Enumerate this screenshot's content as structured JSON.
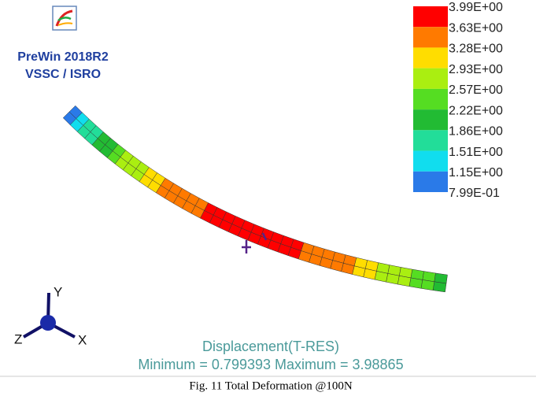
{
  "logo": {
    "product": "PreWin 2018R2",
    "org": "VSSC / ISRO"
  },
  "legend": {
    "labels": [
      "3.99E+00",
      "3.63E+00",
      "3.28E+00",
      "2.93E+00",
      "2.57E+00",
      "2.22E+00",
      "1.86E+00",
      "1.51E+00",
      "1.15E+00",
      "7.99E-01"
    ],
    "colors": [
      "#ff0000",
      "#ff7a00",
      "#ffdd00",
      "#aaee11",
      "#55dd22",
      "#22bb33",
      "#22dd99",
      "#11ddee",
      "#2a7ae8"
    ]
  },
  "triad": {
    "y": "Y",
    "z": "Z",
    "x": "X"
  },
  "result": {
    "title": "Displacement(T-RES)",
    "range": "Minimum = 0.799393  Maximum = 3.98865"
  },
  "caption": "Fig. 11 Total Deformation @100N"
}
